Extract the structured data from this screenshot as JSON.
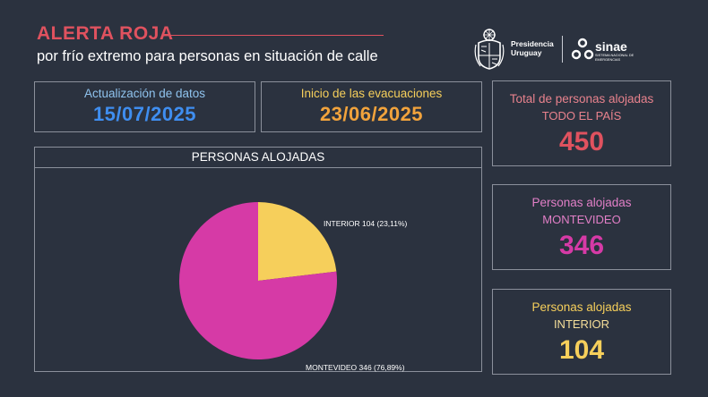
{
  "header": {
    "title": "ALERTA ROJA",
    "subtitle": "por frío extremo para personas en situación de calle"
  },
  "logos": {
    "presidencia": [
      "Presidencia",
      "Uruguay"
    ],
    "sinae": "sinae",
    "sinae_sub": "SISTEMA NACIONAL DE EMERGENCIAS"
  },
  "update": {
    "label": "Actualización de datos",
    "value": "15/07/2025",
    "color": "#3f8ef0"
  },
  "evac": {
    "label": "Inicio de las evacuaciones",
    "value": "23/06/2025",
    "color": "#f2a33c"
  },
  "total": {
    "label1": "Total de personas alojadas",
    "label2": "TODO EL PAÍS",
    "value": "450",
    "color": "#e0525f"
  },
  "montevideo": {
    "label1": "Personas alojadas",
    "label2": "MONTEVIDEO",
    "value": "346",
    "color": "#d63aa6"
  },
  "interior": {
    "label1": "Personas alojadas",
    "label2": "INTERIOR",
    "value": "104",
    "color": "#f6cf5b"
  },
  "chart_data": {
    "type": "pie",
    "title": "PERSONAS ALOJADAS",
    "slices": [
      {
        "label": "INTERIOR 104 (23,11%)",
        "value": 104,
        "color": "#f6cf5b"
      },
      {
        "label": "MONTEVIDEO 346 (76,89%)",
        "value": 346,
        "color": "#d63aa6"
      }
    ]
  }
}
